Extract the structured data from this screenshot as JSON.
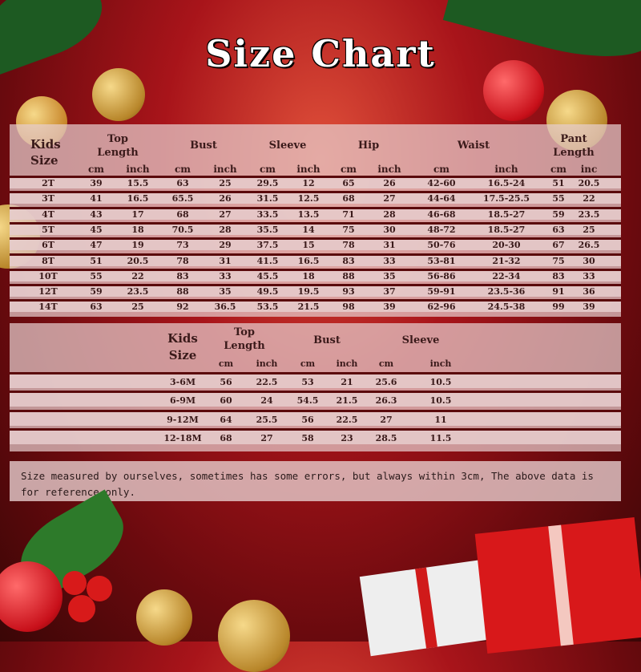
{
  "title": "Size Chart",
  "table1": {
    "headers": [
      "Kids\nSize",
      "Top\nLength",
      "Bust",
      "Sleeve",
      "Hip",
      "Waist",
      "Pant\nLength"
    ],
    "units": [
      "cm",
      "inch",
      "cm",
      "inch",
      "cm",
      "inch",
      "cm",
      "inch",
      "cm",
      "inch",
      "cm",
      "inc"
    ],
    "rows": [
      [
        "2T",
        "39",
        "15.5",
        "63",
        "25",
        "29.5",
        "12",
        "65",
        "26",
        "42-60",
        "16.5-24",
        "51",
        "20.5"
      ],
      [
        "3T",
        "41",
        "16.5",
        "65.5",
        "26",
        "31.5",
        "12.5",
        "68",
        "27",
        "44-64",
        "17.5-25.5",
        "55",
        "22"
      ],
      [
        "4T",
        "43",
        "17",
        "68",
        "27",
        "33.5",
        "13.5",
        "71",
        "28",
        "46-68",
        "18.5-27",
        "59",
        "23.5"
      ],
      [
        "5T",
        "45",
        "18",
        "70.5",
        "28",
        "35.5",
        "14",
        "75",
        "30",
        "48-72",
        "18.5-27",
        "63",
        "25"
      ],
      [
        "6T",
        "47",
        "19",
        "73",
        "29",
        "37.5",
        "15",
        "78",
        "31",
        "50-76",
        "20-30",
        "67",
        "26.5"
      ],
      [
        "8T",
        "51",
        "20.5",
        "78",
        "31",
        "41.5",
        "16.5",
        "83",
        "33",
        "53-81",
        "21-32",
        "75",
        "30"
      ],
      [
        "10T",
        "55",
        "22",
        "83",
        "33",
        "45.5",
        "18",
        "88",
        "35",
        "56-86",
        "22-34",
        "83",
        "33"
      ],
      [
        "12T",
        "59",
        "23.5",
        "88",
        "35",
        "49.5",
        "19.5",
        "93",
        "37",
        "59-91",
        "23.5-36",
        "91",
        "36"
      ],
      [
        "14T",
        "63",
        "25",
        "92",
        "36.5",
        "53.5",
        "21.5",
        "98",
        "39",
        "62-96",
        "24.5-38",
        "99",
        "39"
      ]
    ]
  },
  "table2": {
    "headers": [
      "Kids\nSize",
      "Top\nLength",
      "Bust",
      "Sleeve"
    ],
    "units": [
      "cm",
      "inch",
      "cm",
      "inch",
      "cm",
      "inch"
    ],
    "rows": [
      [
        "3-6M",
        "56",
        "22.5",
        "53",
        "21",
        "25.6",
        "10.5"
      ],
      [
        "6-9M",
        "60",
        "24",
        "54.5",
        "21.5",
        "26.3",
        "10.5"
      ],
      [
        "9-12M",
        "64",
        "25.5",
        "56",
        "22.5",
        "27",
        "11"
      ],
      [
        "12-18M",
        "68",
        "27",
        "58",
        "23",
        "28.5",
        "11.5"
      ]
    ]
  },
  "note": "Size measured by ourselves, sometimes has some errors, but always within 3cm, The above data is for reference only.",
  "colors": {
    "background": "#a8141a",
    "panel": "#e6cdcd",
    "separator": "#5a0a0c",
    "text": "#3a1a1a"
  }
}
